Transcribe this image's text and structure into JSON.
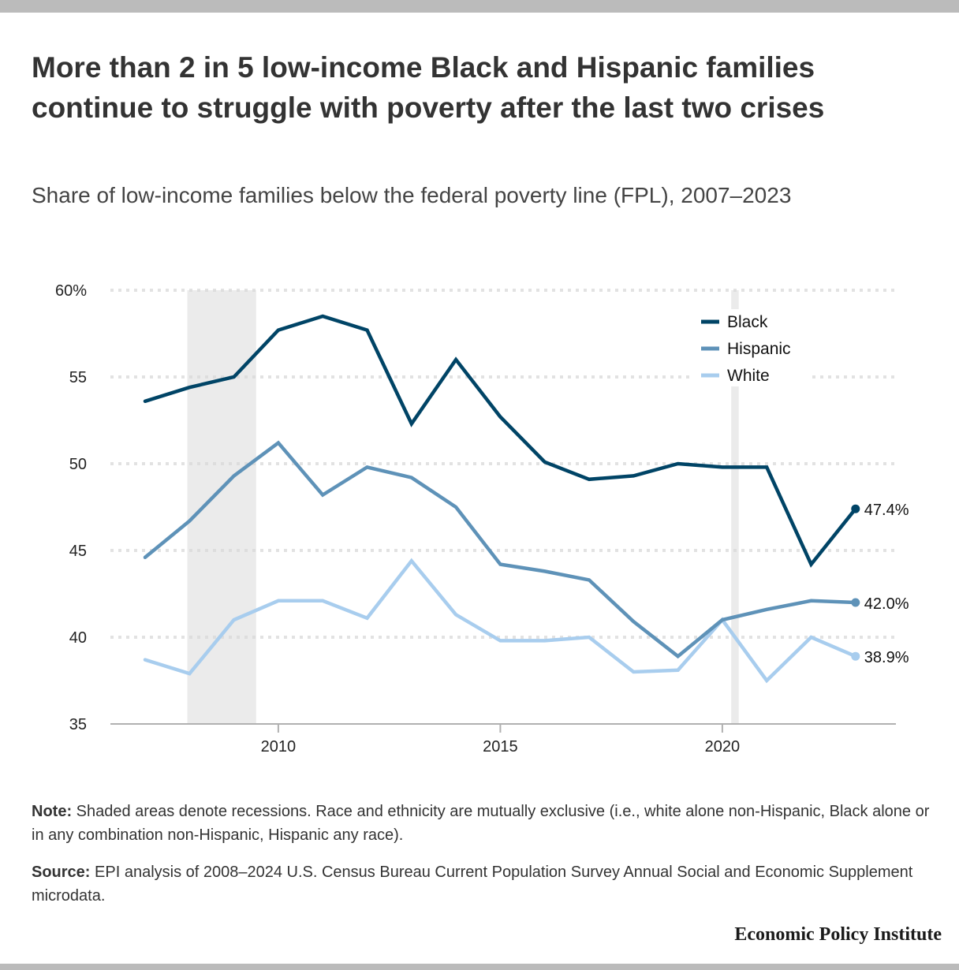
{
  "header": {
    "title": "More than 2 in 5 low-income Black and Hispanic families continue to struggle with poverty after the last two crises",
    "subtitle": "Share of low-income families below the federal poverty line (FPL), 2007–2023"
  },
  "footer": {
    "note_label": "Note:",
    "note_text": " Shaded areas denote recessions. Race and ethnicity are mutually exclusive (i.e., white alone non-Hispanic, Black alone or in any combination non-Hispanic, Hispanic any race).",
    "source_label": "Source:",
    "source_text": " EPI analysis of 2008–2024 U.S. Census Bureau Current Population Survey Annual Social and Economic Supplement microdata.",
    "brand": "Economic Policy Institute"
  },
  "chart_data": {
    "type": "line",
    "title": "More than 2 in 5 low-income Black and Hispanic families continue to struggle with poverty after the last two crises",
    "subtitle": "Share of low-income families below the federal poverty line (FPL), 2007–2023",
    "xlabel": "",
    "ylabel": "",
    "x": [
      2007,
      2008,
      2009,
      2010,
      2011,
      2012,
      2013,
      2014,
      2015,
      2016,
      2017,
      2018,
      2019,
      2020,
      2021,
      2022,
      2023
    ],
    "xlim": [
      2004.5,
      2024.8
    ],
    "ylim": [
      35,
      60
    ],
    "x_ticks": [
      2010,
      2015,
      2020
    ],
    "x_tick_labels": [
      "2010",
      "2015",
      "2020"
    ],
    "y_ticks": [
      35,
      40,
      45,
      50,
      55,
      60
    ],
    "y_tick_labels": [
      "35",
      "40",
      "45",
      "50",
      "55",
      "60%"
    ],
    "grid": true,
    "legend_position": "top-right",
    "recessions": [
      {
        "start": 2007.95,
        "end": 2009.5
      },
      {
        "start": 2020.2,
        "end": 2020.37
      }
    ],
    "series": [
      {
        "name": "Black",
        "color": "#004466",
        "values": [
          53.6,
          54.4,
          55.0,
          57.7,
          58.5,
          57.7,
          52.3,
          56.0,
          52.7,
          50.1,
          49.1,
          49.3,
          50.0,
          49.8,
          49.8,
          44.2,
          47.4
        ],
        "end_label": "47.4%"
      },
      {
        "name": "Hispanic",
        "color": "#5e92b8",
        "values": [
          44.6,
          46.7,
          49.3,
          51.2,
          48.2,
          49.8,
          49.2,
          47.5,
          44.2,
          43.8,
          43.3,
          40.9,
          38.9,
          41.0,
          41.6,
          42.1,
          42.0
        ],
        "end_label": "42.0%"
      },
      {
        "name": "White",
        "color": "#a8cdee",
        "values": [
          38.7,
          37.9,
          41.0,
          42.1,
          42.1,
          41.1,
          44.4,
          41.3,
          39.8,
          39.8,
          40.0,
          38.0,
          38.1,
          41.0,
          37.5,
          40.0,
          38.9
        ],
        "end_label": "38.9%"
      }
    ]
  }
}
